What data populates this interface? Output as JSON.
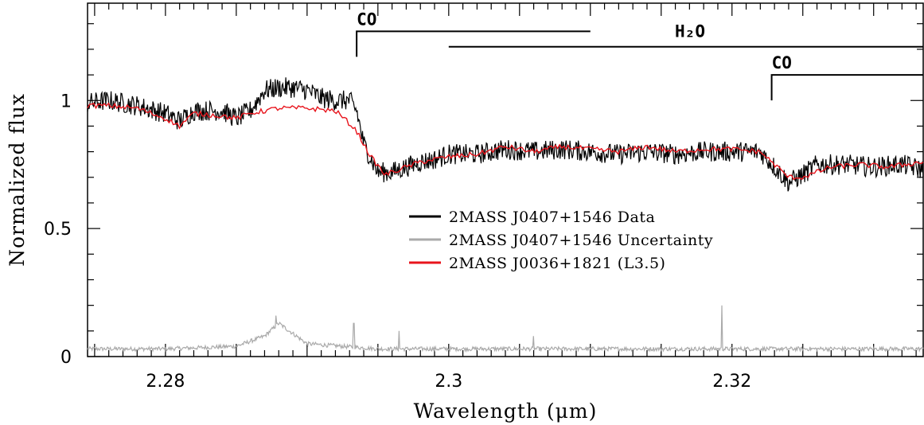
{
  "chart_data": {
    "type": "line",
    "title": "",
    "xlabel": "Wavelength (μm)",
    "ylabel": "Normalized flux",
    "xlim": [
      2.2745,
      2.3335
    ],
    "ylim": [
      0,
      1.38
    ],
    "xticks": [
      {
        "value": 2.28,
        "label": "2.28"
      },
      {
        "value": 2.3,
        "label": "2.3"
      },
      {
        "value": 2.32,
        "label": "2.32"
      }
    ],
    "yticks": [
      {
        "value": 0,
        "label": "0"
      },
      {
        "value": 0.5,
        "label": "0.5"
      },
      {
        "value": 1,
        "label": "1"
      }
    ],
    "legend": {
      "placement": "center",
      "entries": [
        {
          "label": "2MASS J0407+1546 Data",
          "color": "#000000"
        },
        {
          "label": "2MASS J0407+1546 Uncertainty",
          "color": "#aaaaaa"
        },
        {
          "label": "2MASS J0036+1821 (L3.5)",
          "color": "#e8141c"
        }
      ]
    },
    "features": [
      {
        "label": "CO",
        "start": 2.2935,
        "end": 2.31,
        "level": 1.27
      },
      {
        "label": "H₂O",
        "start": 2.3,
        "end": 2.3335,
        "level": 1.21
      },
      {
        "label": "CO",
        "start": 2.3228,
        "end": 2.3335,
        "level": 1.1
      }
    ],
    "series": [
      {
        "name": "2MASS J0407+1546 Data",
        "color": "#000000",
        "anchors": [
          [
            2.2745,
            0.99
          ],
          [
            2.276,
            1.0
          ],
          [
            2.278,
            0.98
          ],
          [
            2.28,
            0.95
          ],
          [
            2.281,
            0.92
          ],
          [
            2.282,
            0.96
          ],
          [
            2.284,
            0.96
          ],
          [
            2.285,
            0.93
          ],
          [
            2.286,
            0.96
          ],
          [
            2.287,
            1.04
          ],
          [
            2.288,
            1.05
          ],
          [
            2.289,
            1.05
          ],
          [
            2.29,
            1.04
          ],
          [
            2.291,
            1.01
          ],
          [
            2.292,
            1.0
          ],
          [
            2.293,
            1.0
          ],
          [
            2.2935,
            0.96
          ],
          [
            2.294,
            0.83
          ],
          [
            2.295,
            0.72
          ],
          [
            2.296,
            0.72
          ],
          [
            2.297,
            0.74
          ],
          [
            2.298,
            0.76
          ],
          [
            2.299,
            0.77
          ],
          [
            2.3,
            0.79
          ],
          [
            2.302,
            0.79
          ],
          [
            2.304,
            0.81
          ],
          [
            2.306,
            0.8
          ],
          [
            2.308,
            0.81
          ],
          [
            2.31,
            0.8
          ],
          [
            2.312,
            0.79
          ],
          [
            2.314,
            0.8
          ],
          [
            2.316,
            0.79
          ],
          [
            2.318,
            0.8
          ],
          [
            2.32,
            0.8
          ],
          [
            2.322,
            0.8
          ],
          [
            2.323,
            0.74
          ],
          [
            2.324,
            0.68
          ],
          [
            2.325,
            0.71
          ],
          [
            2.326,
            0.75
          ],
          [
            2.328,
            0.75
          ],
          [
            2.33,
            0.74
          ],
          [
            2.332,
            0.75
          ],
          [
            2.3335,
            0.73
          ]
        ],
        "noise": 0.04
      },
      {
        "name": "2MASS J0407+1546 Uncertainty",
        "color": "#aaaaaa",
        "anchors": [
          [
            2.2745,
            0.03
          ],
          [
            2.28,
            0.03
          ],
          [
            2.285,
            0.04
          ],
          [
            2.287,
            0.08
          ],
          [
            2.288,
            0.13
          ],
          [
            2.289,
            0.09
          ],
          [
            2.29,
            0.05
          ],
          [
            2.295,
            0.03
          ],
          [
            2.3,
            0.03
          ],
          [
            2.31,
            0.03
          ],
          [
            2.32,
            0.03
          ],
          [
            2.33,
            0.03
          ],
          [
            2.3335,
            0.03
          ]
        ],
        "noise": 0.008,
        "spikes": [
          [
            2.2878,
            0.16
          ],
          [
            2.2933,
            0.13
          ],
          [
            2.2965,
            0.1
          ],
          [
            2.3193,
            0.2
          ],
          [
            2.306,
            0.08
          ]
        ]
      },
      {
        "name": "2MASS J0036+1821 (L3.5)",
        "color": "#e8141c",
        "anchors": [
          [
            2.2745,
            0.98
          ],
          [
            2.276,
            0.98
          ],
          [
            2.278,
            0.97
          ],
          [
            2.28,
            0.93
          ],
          [
            2.281,
            0.9
          ],
          [
            2.282,
            0.95
          ],
          [
            2.284,
            0.94
          ],
          [
            2.285,
            0.93
          ],
          [
            2.286,
            0.95
          ],
          [
            2.288,
            0.97
          ],
          [
            2.29,
            0.97
          ],
          [
            2.292,
            0.96
          ],
          [
            2.293,
            0.91
          ],
          [
            2.2935,
            0.88
          ],
          [
            2.2945,
            0.78
          ],
          [
            2.2955,
            0.71
          ],
          [
            2.2965,
            0.73
          ],
          [
            2.298,
            0.76
          ],
          [
            2.3,
            0.78
          ],
          [
            2.302,
            0.79
          ],
          [
            2.304,
            0.82
          ],
          [
            2.306,
            0.8
          ],
          [
            2.308,
            0.82
          ],
          [
            2.31,
            0.81
          ],
          [
            2.312,
            0.8
          ],
          [
            2.314,
            0.82
          ],
          [
            2.316,
            0.8
          ],
          [
            2.318,
            0.81
          ],
          [
            2.32,
            0.81
          ],
          [
            2.322,
            0.8
          ],
          [
            2.323,
            0.75
          ],
          [
            2.324,
            0.7
          ],
          [
            2.325,
            0.7
          ],
          [
            2.327,
            0.74
          ],
          [
            2.329,
            0.75
          ],
          [
            2.331,
            0.74
          ],
          [
            2.3335,
            0.76
          ]
        ],
        "noise": 0.01
      }
    ]
  }
}
